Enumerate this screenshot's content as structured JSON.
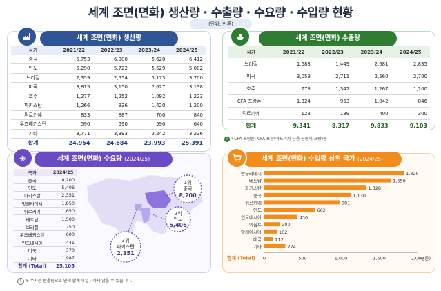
{
  "title": "세계 조면(면화) 생산량 · 수출량 · 수요량 · 수입량 현황",
  "unit": "(단위: 천톤)",
  "colors": {
    "blue": "#2f5597",
    "green": "#2e7d32",
    "purple": "#6a4bc4",
    "orange": "#f28c1a"
  },
  "production": {
    "heading": "세계 조면(면화) 생산량",
    "columns": [
      "국가",
      "2021/22",
      "2022/23",
      "2023/24",
      "2024/25"
    ],
    "rows": [
      [
        "중국",
        "5,753",
        "6,300",
        "5,620",
        "6,412"
      ],
      [
        "인도",
        "5,290",
        "5,722",
        "5,529",
        "5,002"
      ],
      [
        "브라질",
        "2,359",
        "2,554",
        "3,173",
        "3,700"
      ],
      [
        "미국",
        "3,815",
        "3,150",
        "2,627",
        "3,138"
      ],
      [
        "호주",
        "1,277",
        "1,252",
        "1,092",
        "1,223"
      ],
      [
        "파키스탄",
        "1,266",
        "836",
        "1,420",
        "1,200"
      ],
      [
        "튀르키예",
        "833",
        "887",
        "700",
        "840"
      ],
      [
        "우즈베키스탄",
        "590",
        "590",
        "590",
        "640"
      ],
      [
        "기타",
        "3,771",
        "3,393",
        "3,242",
        "3,236"
      ]
    ],
    "total": [
      "합계",
      "24,954",
      "24,684",
      "23,993",
      "25,391"
    ]
  },
  "exports": {
    "heading": "세계 조면(면화) 수출량",
    "columns": [
      "국가",
      "2021/22",
      "2022/23",
      "2023/24",
      "2024/25"
    ],
    "rows": [
      [
        "브라질",
        "1,683",
        "1,449",
        "2,681",
        "2,835"
      ],
      [
        "미국",
        "3,059",
        "2,711",
        "2,560",
        "2,700"
      ],
      [
        "호주",
        "778",
        "1,347",
        "1,267",
        "1,100"
      ],
      [
        "CFA 프랑존 ¹",
        "1,324",
        "953",
        "1,042",
        "846"
      ],
      [
        "튀르키예",
        "128",
        "189",
        "400",
        "300"
      ]
    ],
    "total": [
      "합계",
      "9,341",
      "8,317",
      "9,833",
      "9,103"
    ],
    "footnote": "¹ CFA 프랑존: CFA 프랑(아프리카 금융 공동체 프랑)존"
  },
  "demand": {
    "heading": "세계 조면(면화) 수요량",
    "year_tag": "(2024/25)",
    "columns": [
      "국가",
      "2024/25"
    ],
    "rows": [
      [
        "중국",
        "8,200"
      ],
      [
        "인도",
        "5,406"
      ],
      [
        "파키스탄",
        "2,351"
      ],
      [
        "방글라데시",
        "1,850"
      ],
      [
        "튀르키예",
        "1,650"
      ],
      [
        "베트남",
        "1,500"
      ],
      [
        "브라질",
        "750"
      ],
      [
        "우즈베키스탄",
        "600"
      ],
      [
        "인도네시아",
        "441"
      ],
      [
        "미국",
        "370"
      ],
      [
        "기타",
        "1,987"
      ]
    ],
    "total": [
      "합계 (Total)",
      "25,105"
    ],
    "callouts": [
      {
        "rank": "1위",
        "country": "중국",
        "value": "8,200"
      },
      {
        "rank": "2위",
        "country": "인도",
        "value": "5,406"
      },
      {
        "rank": "3위",
        "country": "파키스탄",
        "value": "2,351"
      }
    ]
  },
  "imports": {
    "heading": "세계 조면(면화) 수입량 상위 국가",
    "year_tag": "(2024/25)",
    "total_label": "합계 (Total)",
    "unit_label": "(천톤)"
  },
  "chart_data": {
    "type": "bar",
    "orientation": "horizontal",
    "categories": [
      "방글라데시",
      "베트남",
      "파키스탄",
      "중국",
      "튀르키예",
      "인도",
      "인도네시아",
      "이집트",
      "말레이시아",
      "태국",
      "기타"
    ],
    "values": [
      1820,
      1650,
      1328,
      1130,
      981,
      662,
      430,
      200,
      162,
      112,
      274
    ],
    "value_labels": [
      "1,820",
      "1,650",
      "1,328",
      "1,130",
      "981",
      "662",
      "430",
      "200",
      "162",
      "112",
      "274"
    ],
    "xlim": [
      0,
      2000
    ],
    "xticks": [
      0,
      500,
      1000,
      1500,
      2000
    ],
    "xtick_labels": [
      "0",
      "500",
      "1,000",
      "1,500",
      "2,000"
    ],
    "bar_color": "#f28c1a"
  },
  "bottom_note": "※ 수치는 반올림으로 인해 합계가 일치하지 않을 수 있습니다."
}
